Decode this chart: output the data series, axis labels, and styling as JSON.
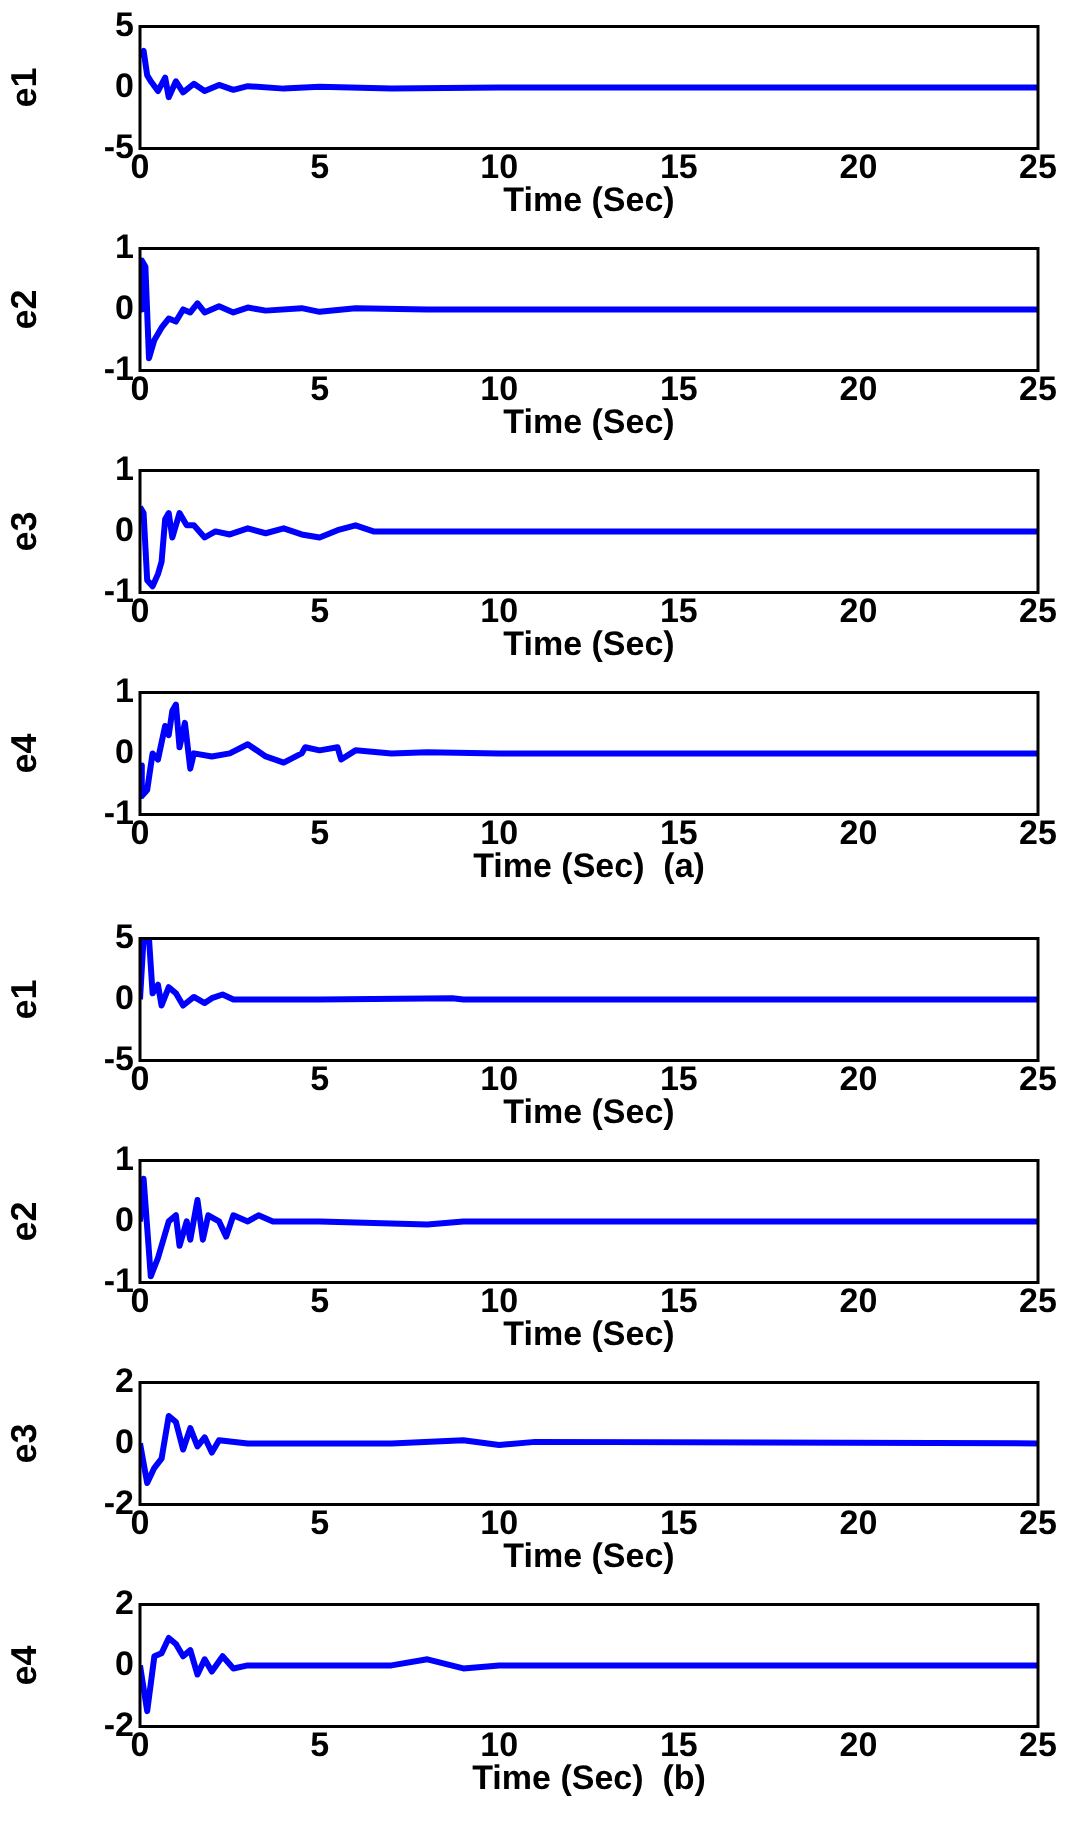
{
  "chart_data": [
    {
      "type": "line",
      "ylabel": "e1",
      "xlabel": "Time (Sec)",
      "color": "#0000ff",
      "xlim": [
        0,
        25
      ],
      "ylim": [
        -5,
        5
      ],
      "xticks": [
        0,
        5,
        10,
        15,
        20,
        25
      ],
      "yticks": [
        -5,
        0,
        5
      ],
      "x": [
        0,
        0.1,
        0.2,
        0.3,
        0.5,
        0.7,
        0.8,
        1,
        1.2,
        1.5,
        1.8,
        2.2,
        2.6,
        3,
        4,
        5,
        7,
        10,
        15,
        20,
        25
      ],
      "values": [
        2.5,
        3,
        1,
        0.5,
        -0.3,
        0.8,
        -0.8,
        0.5,
        -0.4,
        0.3,
        -0.3,
        0.2,
        -0.2,
        0.1,
        -0.1,
        0.05,
        -0.1,
        0,
        0,
        0,
        0
      ]
    },
    {
      "type": "line",
      "ylabel": "e2",
      "xlabel": "Time (Sec)",
      "color": "#0000ff",
      "xlim": [
        0,
        25
      ],
      "ylim": [
        -1,
        1
      ],
      "xticks": [
        0,
        5,
        10,
        15,
        20,
        25
      ],
      "yticks": [
        -1,
        0,
        1
      ],
      "x": [
        0,
        0.05,
        0.15,
        0.25,
        0.4,
        0.6,
        0.8,
        1,
        1.2,
        1.4,
        1.6,
        1.8,
        2.2,
        2.6,
        3,
        3.5,
        4.5,
        5,
        6,
        8,
        12,
        25
      ],
      "values": [
        0,
        0.8,
        0.7,
        -0.8,
        -0.5,
        -0.3,
        -0.15,
        -0.2,
        0,
        -0.05,
        0.1,
        -0.05,
        0.05,
        -0.05,
        0.03,
        -0.02,
        0.02,
        -0.04,
        0.02,
        0,
        0,
        0
      ]
    },
    {
      "type": "line",
      "ylabel": "e3",
      "xlabel": "Time (Sec)",
      "color": "#0000ff",
      "xlim": [
        0,
        25
      ],
      "ylim": [
        -1,
        1
      ],
      "xticks": [
        0,
        5,
        10,
        15,
        20,
        25
      ],
      "yticks": [
        -1,
        0,
        1
      ],
      "x": [
        0,
        0.1,
        0.2,
        0.35,
        0.5,
        0.6,
        0.7,
        0.8,
        0.9,
        1.1,
        1.3,
        1.5,
        1.8,
        2.1,
        2.5,
        3,
        3.5,
        4,
        4.5,
        5,
        5.5,
        6,
        6.5,
        8,
        25
      ],
      "values": [
        0.4,
        0.3,
        -0.8,
        -0.9,
        -0.7,
        -0.5,
        0.2,
        0.3,
        -0.1,
        0.3,
        0.1,
        0.1,
        -0.1,
        0,
        -0.05,
        0.05,
        -0.03,
        0.05,
        -0.05,
        -0.1,
        0.02,
        0.1,
        0,
        0,
        0
      ]
    },
    {
      "type": "line",
      "ylabel": "e4",
      "xlabel": "Time (Sec)  (a)",
      "color": "#0000ff",
      "xlim": [
        0,
        25
      ],
      "ylim": [
        -1,
        1
      ],
      "xticks": [
        0,
        5,
        10,
        15,
        20,
        25
      ],
      "yticks": [
        -1,
        0,
        1
      ],
      "x": [
        0,
        0.05,
        0.2,
        0.35,
        0.5,
        0.7,
        0.8,
        0.9,
        1,
        1.1,
        1.25,
        1.4,
        1.5,
        2,
        2.5,
        3,
        3.5,
        4,
        4.5,
        4.6,
        5,
        5.5,
        5.6,
        6,
        7,
        8,
        10,
        25
      ],
      "values": [
        -0.2,
        -0.7,
        -0.6,
        0,
        -0.1,
        0.45,
        0.3,
        0.7,
        0.8,
        0.1,
        0.5,
        -0.25,
        0,
        -0.05,
        0,
        0.15,
        -0.05,
        -0.15,
        0,
        0.1,
        0.05,
        0.1,
        -0.1,
        0.05,
        0,
        0.02,
        0,
        0
      ]
    },
    {
      "type": "line",
      "ylabel": "e1",
      "xlabel": "Time (Sec)",
      "color": "#0000ff",
      "xlim": [
        0,
        25
      ],
      "ylim": [
        -5,
        5
      ],
      "xticks": [
        0,
        5,
        10,
        15,
        20,
        25
      ],
      "yticks": [
        -5,
        0,
        5
      ],
      "x": [
        0,
        0.1,
        0.25,
        0.35,
        0.5,
        0.6,
        0.8,
        1,
        1.2,
        1.5,
        1.8,
        2,
        2.3,
        2.6,
        5,
        8.7,
        9,
        25
      ],
      "values": [
        0,
        5,
        5,
        0.5,
        1.2,
        -0.5,
        1,
        0.5,
        -0.5,
        0.2,
        -0.3,
        0.1,
        0.4,
        0,
        0,
        0.1,
        0,
        0
      ]
    },
    {
      "type": "line",
      "ylabel": "e2",
      "xlabel": "Time (Sec)",
      "color": "#0000ff",
      "xlim": [
        0,
        25
      ],
      "ylim": [
        -1,
        1
      ],
      "xticks": [
        0,
        5,
        10,
        15,
        20,
        25
      ],
      "yticks": [
        -1,
        0,
        1
      ],
      "x": [
        0,
        0.1,
        0.3,
        0.5,
        0.8,
        1,
        1.1,
        1.3,
        1.4,
        1.6,
        1.75,
        1.9,
        2.2,
        2.4,
        2.6,
        3,
        3.3,
        3.7,
        5,
        8,
        9,
        25
      ],
      "values": [
        0,
        0.7,
        -0.9,
        -0.6,
        0,
        0.1,
        -0.4,
        0,
        -0.3,
        0.35,
        -0.3,
        0.1,
        0,
        -0.25,
        0.1,
        0,
        0.1,
        0,
        0,
        -0.05,
        0,
        0
      ]
    },
    {
      "type": "line",
      "ylabel": "e3",
      "xlabel": "Time (Sec)",
      "color": "#0000ff",
      "xlim": [
        0,
        25
      ],
      "ylim": [
        -2,
        2
      ],
      "xticks": [
        0,
        5,
        10,
        15,
        20,
        25
      ],
      "yticks": [
        -2,
        0,
        2
      ],
      "x": [
        0,
        0.2,
        0.4,
        0.6,
        0.8,
        1,
        1.2,
        1.4,
        1.6,
        1.8,
        2,
        2.2,
        3,
        7,
        9,
        10,
        11,
        25
      ],
      "values": [
        0,
        -1.3,
        -0.8,
        -0.5,
        0.9,
        0.7,
        -0.2,
        0.5,
        -0.1,
        0.2,
        -0.3,
        0.1,
        0,
        0,
        0.1,
        -0.05,
        0.05,
        0
      ]
    },
    {
      "type": "line",
      "ylabel": "e4",
      "xlabel": "Time (Sec)  (b)",
      "color": "#0000ff",
      "xlim": [
        0,
        25
      ],
      "ylim": [
        -2,
        2
      ],
      "xticks": [
        0,
        5,
        10,
        15,
        20,
        25
      ],
      "yticks": [
        -2,
        0,
        2
      ],
      "x": [
        0,
        0.2,
        0.4,
        0.6,
        0.8,
        1,
        1.2,
        1.4,
        1.6,
        1.8,
        2,
        2.3,
        2.6,
        3,
        7,
        8,
        9,
        10,
        25
      ],
      "values": [
        0,
        -1.5,
        0.3,
        0.4,
        0.9,
        0.7,
        0.3,
        0.5,
        -0.3,
        0.2,
        -0.2,
        0.3,
        -0.1,
        0,
        0,
        0.2,
        -0.1,
        0,
        0
      ]
    }
  ]
}
